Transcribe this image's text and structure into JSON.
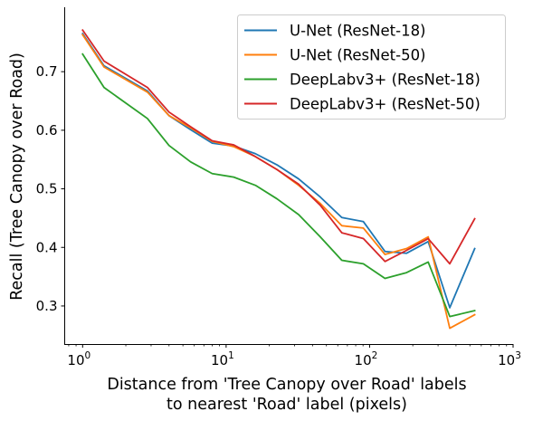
{
  "chart_data": {
    "type": "line",
    "xscale": "log",
    "xlim": [
      0.75,
      1000
    ],
    "ylim": [
      0.235,
      0.81
    ],
    "xticks": [
      {
        "value": 1,
        "base": "10",
        "exp": "0"
      },
      {
        "value": 10,
        "base": "10",
        "exp": "1"
      },
      {
        "value": 100,
        "base": "10",
        "exp": "2"
      },
      {
        "value": 1000,
        "base": "10",
        "exp": "3"
      }
    ],
    "yticks": [
      "0.3",
      "0.4",
      "0.5",
      "0.6",
      "0.7"
    ],
    "xlabel_line1": "Distance from 'Tree Canopy over Road' labels",
    "xlabel_line2": "to nearest 'Road' label (pixels)",
    "ylabel": "Recall (Tree Canopy over Road)",
    "legend_position": "upper right",
    "x": [
      1,
      1.41,
      2.83,
      4,
      5.66,
      8,
      11.3,
      16,
      22.6,
      32,
      45.3,
      64,
      90.5,
      128,
      181,
      256,
      362,
      540
    ],
    "series": [
      {
        "name": "U-Net (ResNet-18)",
        "color": "#1f77b4",
        "values": [
          0.765,
          0.71,
          0.667,
          0.625,
          0.601,
          0.578,
          0.573,
          0.56,
          0.541,
          0.517,
          0.486,
          0.451,
          0.444,
          0.393,
          0.39,
          0.41,
          0.297,
          0.398
        ]
      },
      {
        "name": "U-Net (ResNet-50)",
        "color": "#ff7f0e",
        "values": [
          0.763,
          0.708,
          0.665,
          0.625,
          0.604,
          0.581,
          0.572,
          0.555,
          0.533,
          0.506,
          0.475,
          0.437,
          0.433,
          0.388,
          0.398,
          0.418,
          0.262,
          0.285
        ]
      },
      {
        "name": "DeepLabv3+ (ResNet-18)",
        "color": "#2ca02c",
        "values": [
          0.73,
          0.673,
          0.62,
          0.574,
          0.546,
          0.526,
          0.52,
          0.506,
          0.483,
          0.456,
          0.418,
          0.378,
          0.372,
          0.347,
          0.357,
          0.375,
          0.282,
          0.292
        ]
      },
      {
        "name": "DeepLabv3+ (ResNet-50)",
        "color": "#d62728",
        "values": [
          0.771,
          0.718,
          0.673,
          0.631,
          0.606,
          0.582,
          0.575,
          0.555,
          0.533,
          0.508,
          0.472,
          0.425,
          0.415,
          0.376,
          0.395,
          0.415,
          0.372,
          0.449
        ]
      }
    ]
  }
}
